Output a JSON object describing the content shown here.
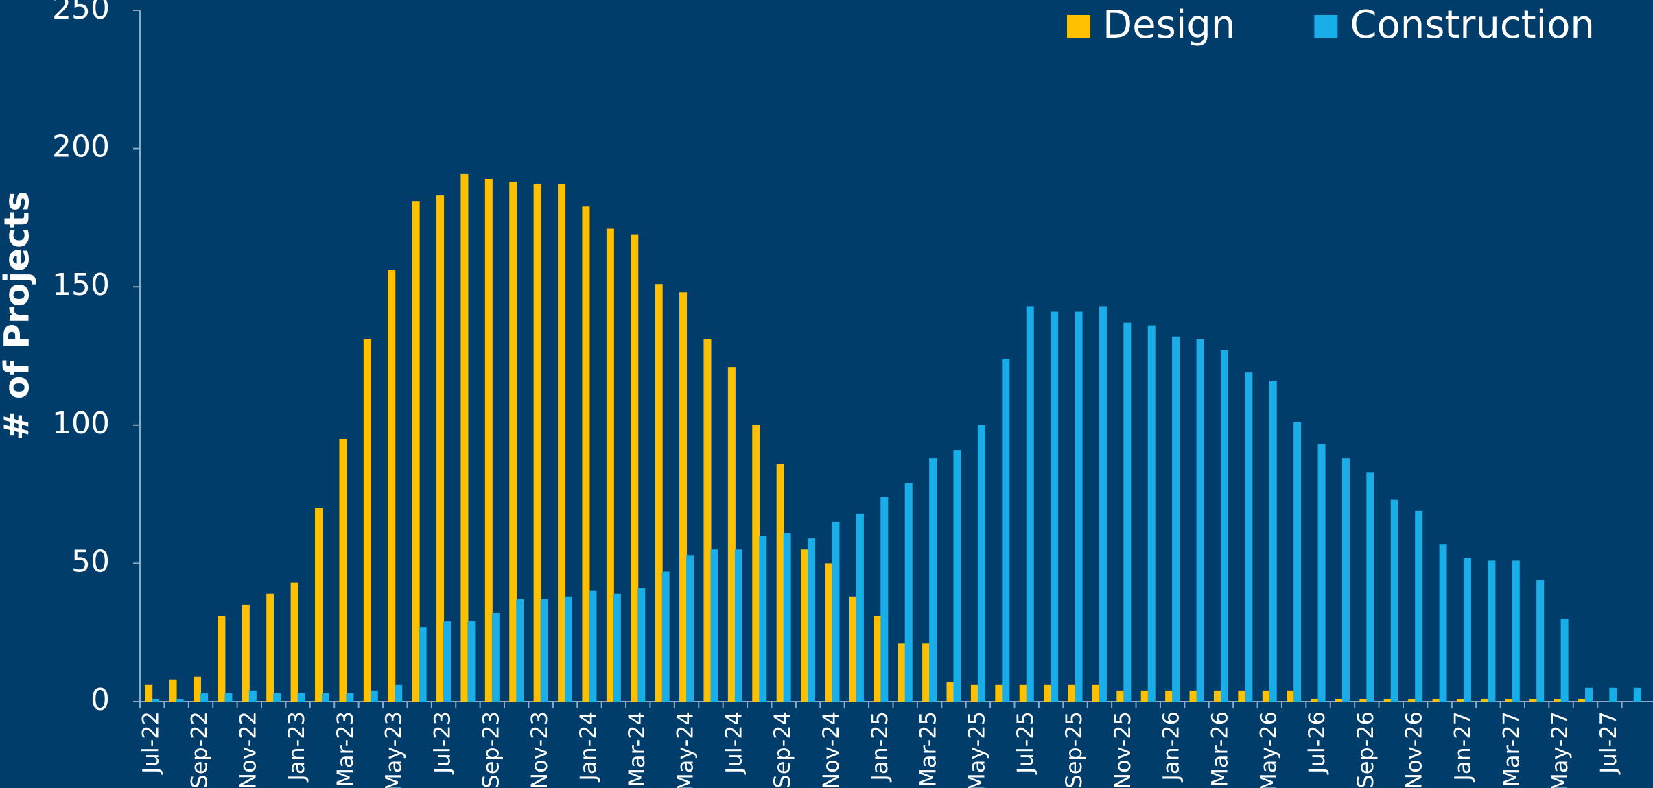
{
  "chart_data": {
    "type": "bar",
    "y_label": "# of Projects",
    "categories": [
      "Jul-22",
      null,
      "Sep-22",
      null,
      "Nov-22",
      null,
      "Jan-23",
      null,
      "Mar-23",
      null,
      "May-23",
      null,
      "Jul-23",
      null,
      "Sep-23",
      null,
      "Nov-23",
      null,
      "Jan-24",
      null,
      "Mar-24",
      null,
      "May-24",
      null,
      "Jul-24",
      null,
      "Sep-24",
      null,
      "Nov-24",
      null,
      "Jan-25",
      null,
      "Mar-25",
      null,
      "May-25",
      null,
      "Jul-25",
      null,
      "Sep-25",
      null,
      "Nov-25",
      null,
      "Jan-26",
      null,
      "Mar-26",
      null,
      "May-26",
      null,
      "Jul-26",
      null,
      "Sep-26",
      null,
      "Nov-26",
      null,
      "Jan-27",
      null,
      "Mar-27",
      null,
      "May-27",
      null,
      "Jul-27",
      null
    ],
    "series": [
      {
        "name": "Design",
        "color": "#ffc000",
        "values": [
          6,
          8,
          9,
          31,
          35,
          39,
          43,
          70,
          95,
          131,
          156,
          181,
          183,
          191,
          189,
          188,
          187,
          187,
          179,
          171,
          169,
          151,
          148,
          131,
          121,
          100,
          86,
          55,
          50,
          38,
          31,
          21,
          21,
          7,
          6,
          6,
          6,
          6,
          6,
          6,
          4,
          4,
          4,
          4,
          4,
          4,
          4,
          4,
          1,
          1,
          1,
          1,
          1,
          1,
          1,
          1,
          1,
          1,
          1,
          1,
          0,
          0
        ]
      },
      {
        "name": "Construction",
        "color": "#19aee8",
        "values": [
          1,
          1,
          3,
          3,
          4,
          3,
          3,
          3,
          3,
          4,
          6,
          27,
          29,
          29,
          32,
          37,
          37,
          38,
          40,
          39,
          41,
          47,
          53,
          55,
          55,
          60,
          61,
          59,
          65,
          68,
          74,
          79,
          88,
          91,
          100,
          124,
          143,
          141,
          141,
          143,
          137,
          136,
          132,
          131,
          127,
          119,
          116,
          101,
          93,
          88,
          83,
          73,
          69,
          57,
          52,
          51,
          51,
          44,
          30,
          5,
          5,
          5
        ]
      }
    ],
    "ylim": [
      0,
      250
    ],
    "yticks": [
      0,
      50,
      100,
      150,
      200,
      250
    ],
    "grid": false,
    "legend": "upper right"
  }
}
